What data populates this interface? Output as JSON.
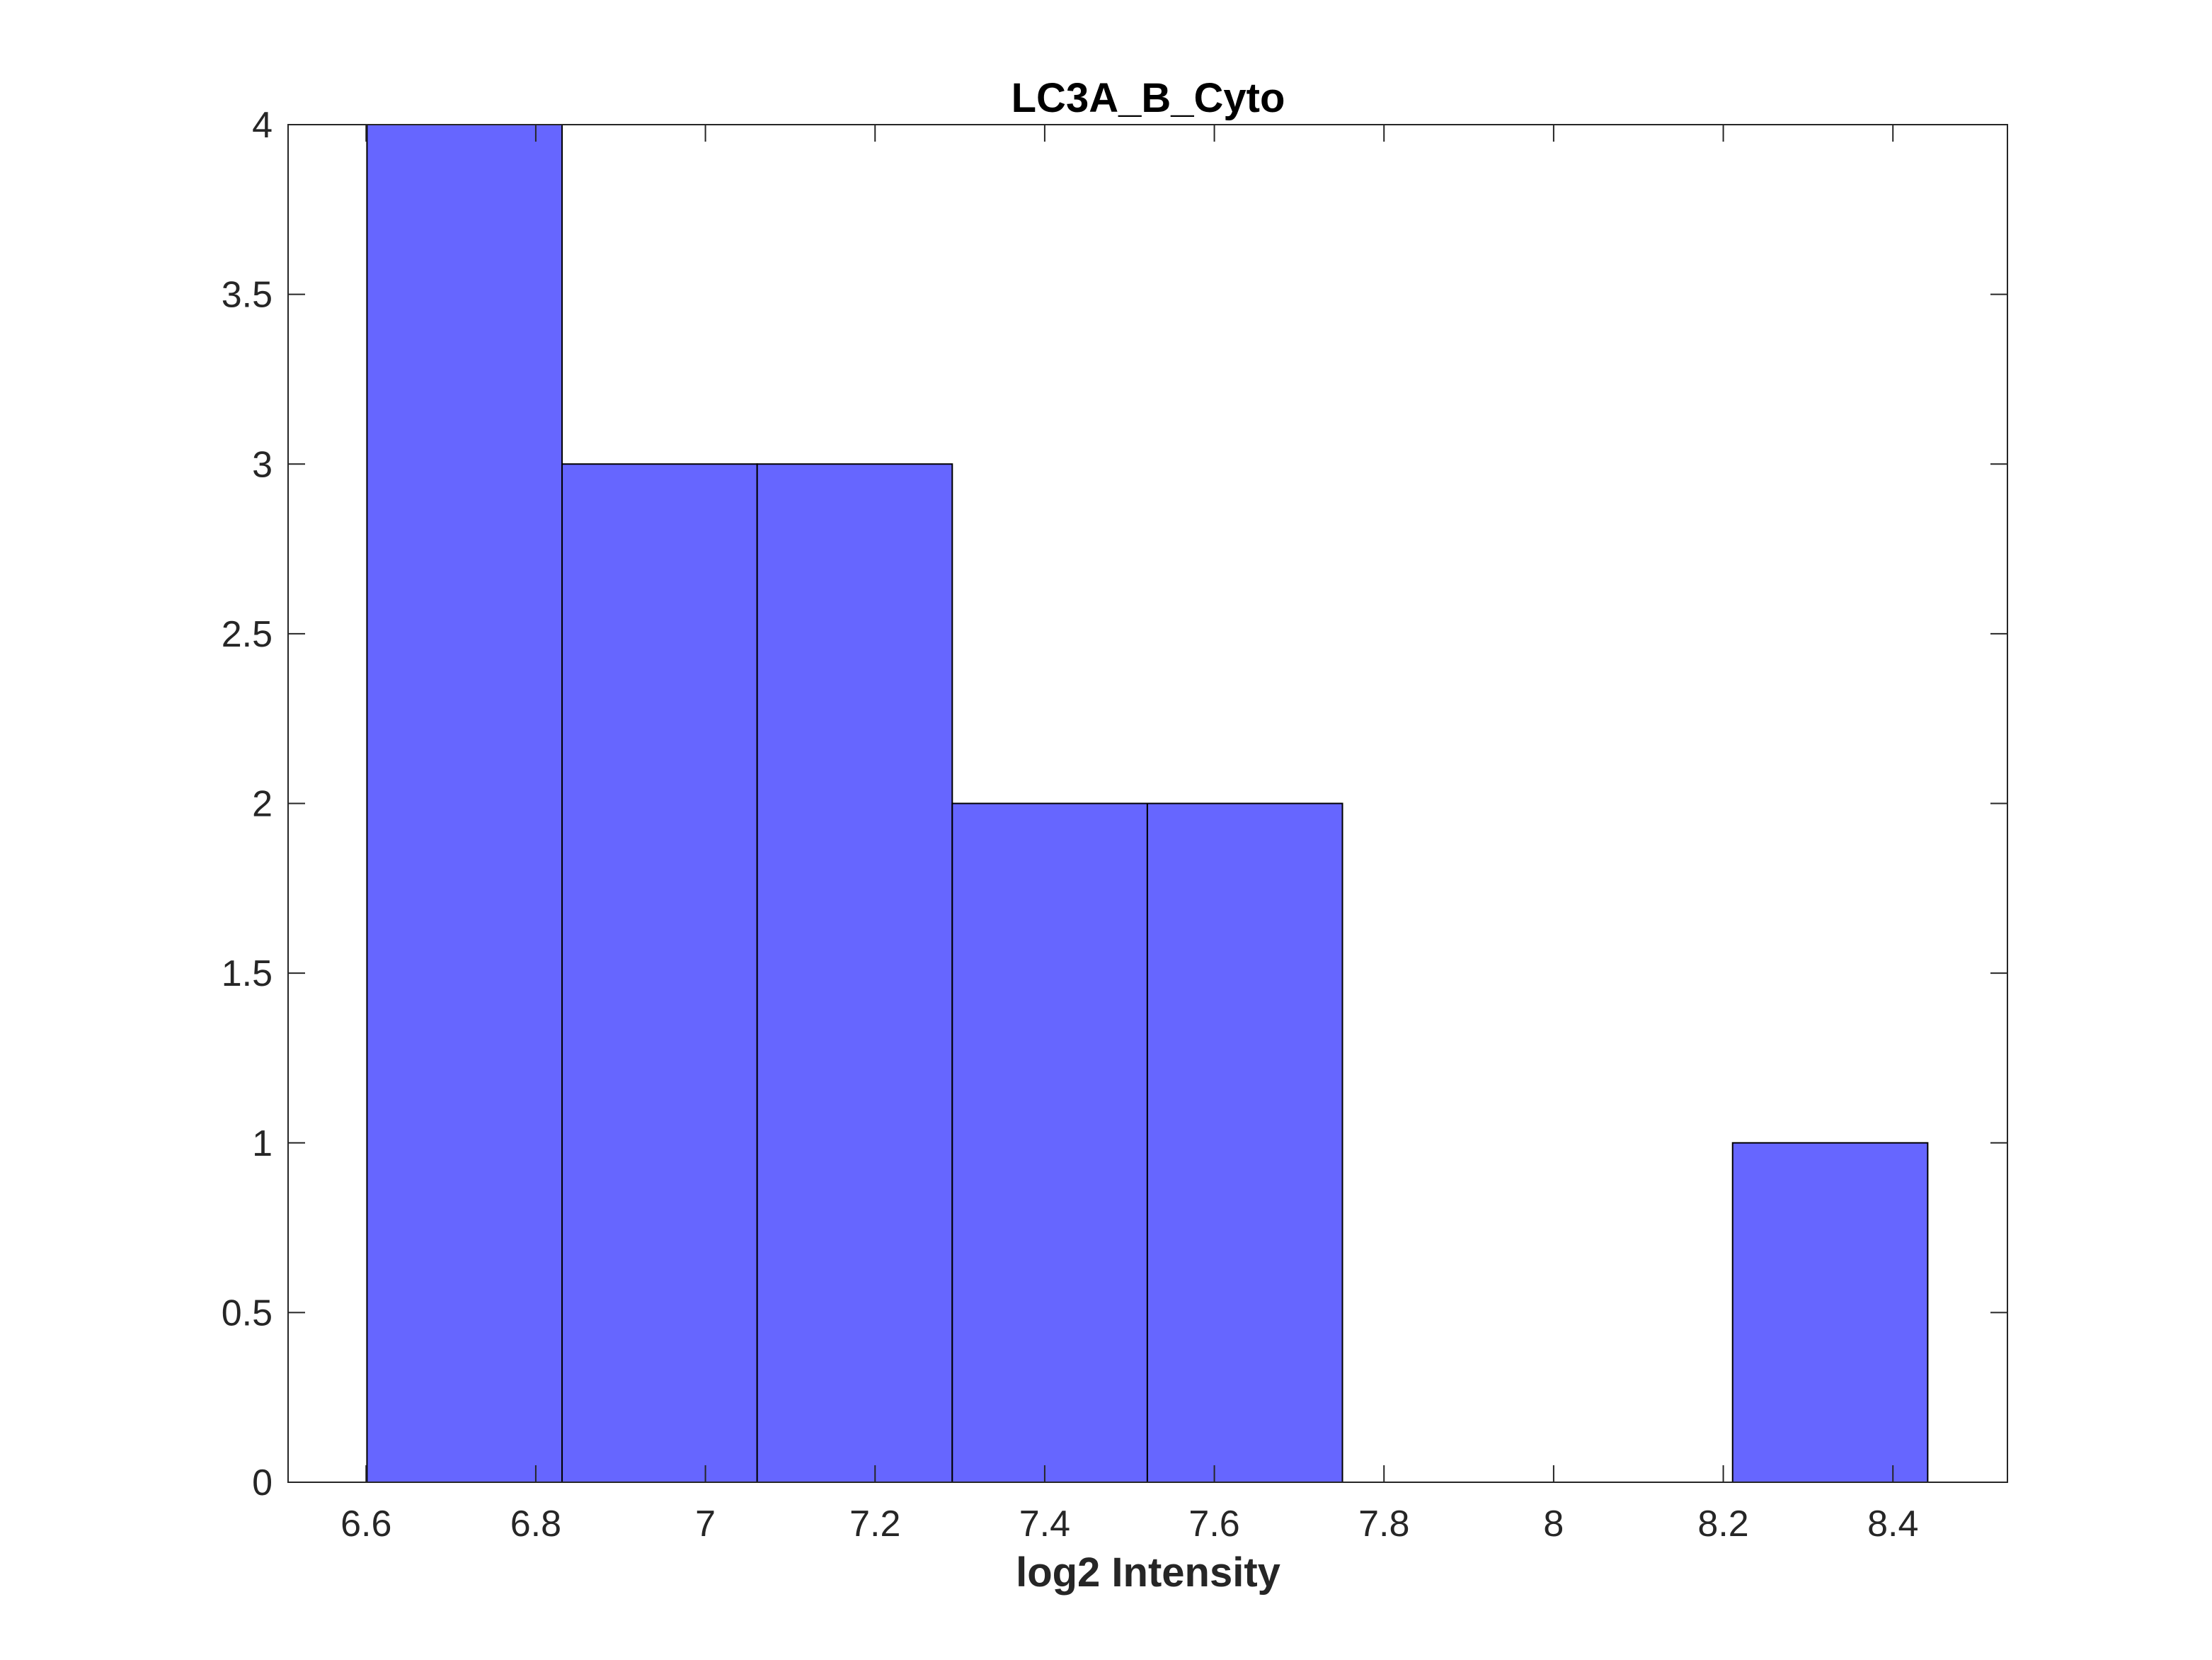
{
  "chart_data": {
    "type": "bar",
    "subtype": "histogram",
    "title": "LC3A_B_Cyto",
    "xlabel": "log2 Intensity",
    "ylabel": "",
    "xlim": [
      6.508,
      8.535
    ],
    "ylim": [
      0,
      4
    ],
    "grid": false,
    "box": true,
    "xticks": [
      6.6,
      6.8,
      7,
      7.2,
      7.4,
      7.6,
      7.8,
      8,
      8.2,
      8.4
    ],
    "xtick_labels": [
      "6.6",
      "6.8",
      "7",
      "7.2",
      "7.4",
      "7.6",
      "7.8",
      "8",
      "8.2",
      "8.4"
    ],
    "yticks": [
      0,
      0.5,
      1,
      1.5,
      2,
      2.5,
      3,
      3.5,
      4
    ],
    "ytick_labels": [
      "0",
      "0.5",
      "1",
      "1.5",
      "2",
      "2.5",
      "3",
      "3.5",
      "4"
    ],
    "bin_edges": [
      6.601,
      6.831,
      7.061,
      7.291,
      7.521,
      7.751,
      7.981,
      8.211,
      8.441
    ],
    "values": [
      4,
      3,
      3,
      2,
      2,
      0,
      0,
      1
    ],
    "bar_color": "#6666ff",
    "bar_edge_color": "#000000"
  }
}
